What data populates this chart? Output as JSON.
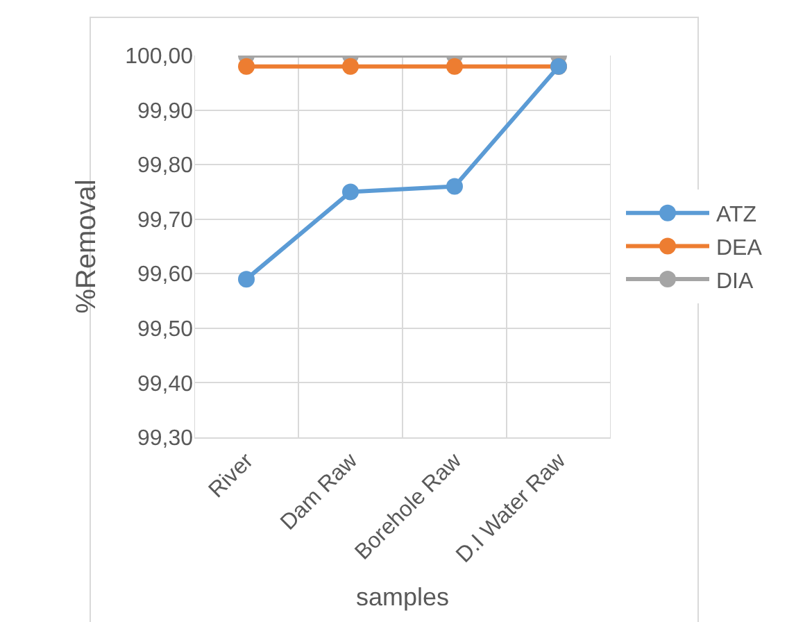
{
  "chart_data": {
    "type": "line",
    "xlabel": "samples",
    "ylabel": "%Removal",
    "categories": [
      "River",
      "Dam Raw",
      "Borehole Raw",
      "D.I Water Raw"
    ],
    "series": [
      {
        "name": "ATZ",
        "color": "#5b9bd5",
        "values": [
          99.59,
          99.75,
          99.76,
          99.98
        ]
      },
      {
        "name": "DEA",
        "color": "#ed7d31",
        "values": [
          99.98,
          99.98,
          99.98,
          99.98
        ]
      },
      {
        "name": "DIA",
        "color": "#a5a5a5",
        "values": [
          100.0,
          100.0,
          100.0,
          100.0
        ]
      }
    ],
    "ylim": [
      99.3,
      100.0
    ],
    "yticks": [
      {
        "value": 99.3,
        "label": "99,30"
      },
      {
        "value": 99.4,
        "label": "99,40"
      },
      {
        "value": 99.5,
        "label": "99,50"
      },
      {
        "value": 99.6,
        "label": "99,60"
      },
      {
        "value": 99.7,
        "label": "99,70"
      },
      {
        "value": 99.8,
        "label": "99,80"
      },
      {
        "value": 99.9,
        "label": "99,90"
      },
      {
        "value": 100.0,
        "label": "100,00"
      }
    ],
    "grid": true,
    "legend": "right",
    "marker": "circle",
    "line_style": "solid"
  }
}
